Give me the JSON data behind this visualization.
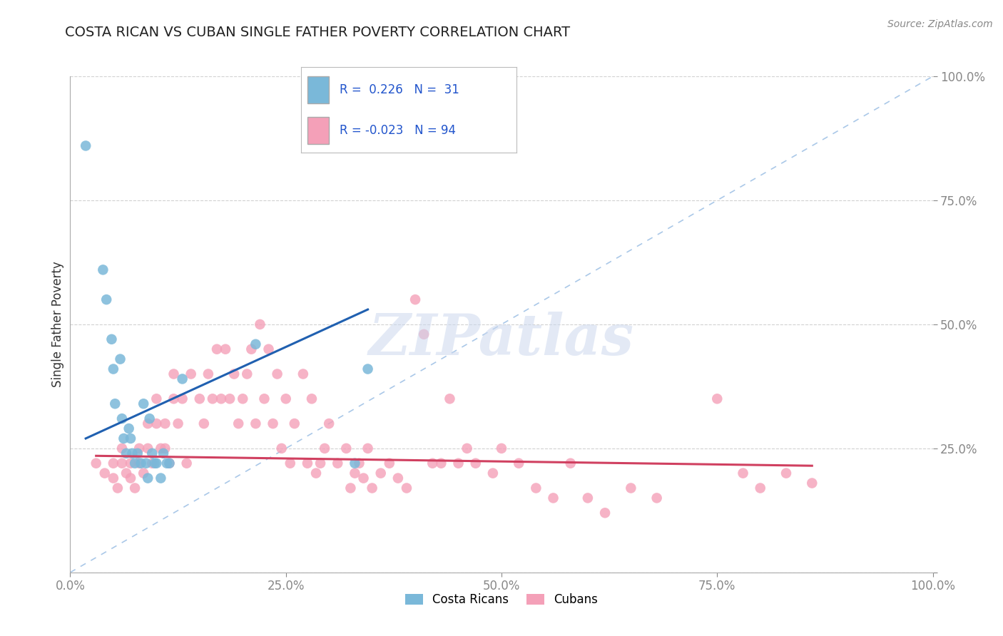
{
  "title": "COSTA RICAN VS CUBAN SINGLE FATHER POVERTY CORRELATION CHART",
  "source": "Source: ZipAtlas.com",
  "ylabel": "Single Father Poverty",
  "xlim": [
    0,
    1
  ],
  "ylim": [
    0,
    1
  ],
  "xticks": [
    0,
    0.25,
    0.5,
    0.75,
    1.0
  ],
  "yticks": [
    0,
    0.25,
    0.5,
    0.75,
    1.0
  ],
  "xticklabels": [
    "0.0%",
    "25.0%",
    "50.0%",
    "75.0%",
    "100.0%"
  ],
  "yticklabels": [
    "",
    "25.0%",
    "50.0%",
    "75.0%",
    "100.0%"
  ],
  "costa_rican_color": "#7ab8d9",
  "cuban_color": "#f4a0b8",
  "blue_line_color": "#2060b0",
  "pink_line_color": "#d04060",
  "diagonal_color": "#aac8e8",
  "watermark_text": "ZIPatlas",
  "background_color": "#ffffff",
  "grid_color": "#cccccc",
  "costa_ricans_x": [
    0.018,
    0.038,
    0.042,
    0.048,
    0.05,
    0.052,
    0.058,
    0.06,
    0.062,
    0.065,
    0.068,
    0.07,
    0.072,
    0.075,
    0.078,
    0.082,
    0.085,
    0.088,
    0.09,
    0.092,
    0.095,
    0.098,
    0.1,
    0.105,
    0.108,
    0.112,
    0.115,
    0.13,
    0.215,
    0.33,
    0.345
  ],
  "costa_ricans_y": [
    0.86,
    0.61,
    0.55,
    0.47,
    0.41,
    0.34,
    0.43,
    0.31,
    0.27,
    0.24,
    0.29,
    0.27,
    0.24,
    0.22,
    0.24,
    0.22,
    0.34,
    0.22,
    0.19,
    0.31,
    0.24,
    0.22,
    0.22,
    0.19,
    0.24,
    0.22,
    0.22,
    0.39,
    0.46,
    0.22,
    0.41
  ],
  "cubans_x": [
    0.03,
    0.04,
    0.05,
    0.05,
    0.055,
    0.06,
    0.06,
    0.065,
    0.07,
    0.07,
    0.075,
    0.08,
    0.08,
    0.085,
    0.09,
    0.09,
    0.095,
    0.1,
    0.1,
    0.105,
    0.11,
    0.11,
    0.115,
    0.12,
    0.12,
    0.125,
    0.13,
    0.135,
    0.14,
    0.15,
    0.155,
    0.16,
    0.165,
    0.17,
    0.175,
    0.18,
    0.185,
    0.19,
    0.195,
    0.2,
    0.205,
    0.21,
    0.215,
    0.22,
    0.225,
    0.23,
    0.235,
    0.24,
    0.245,
    0.25,
    0.255,
    0.26,
    0.27,
    0.275,
    0.28,
    0.285,
    0.29,
    0.295,
    0.3,
    0.31,
    0.32,
    0.325,
    0.33,
    0.335,
    0.34,
    0.345,
    0.35,
    0.36,
    0.37,
    0.38,
    0.39,
    0.4,
    0.41,
    0.42,
    0.43,
    0.44,
    0.45,
    0.46,
    0.47,
    0.49,
    0.5,
    0.52,
    0.54,
    0.56,
    0.58,
    0.6,
    0.62,
    0.65,
    0.68,
    0.75,
    0.78,
    0.8,
    0.83,
    0.86
  ],
  "cubans_y": [
    0.22,
    0.2,
    0.22,
    0.19,
    0.17,
    0.25,
    0.22,
    0.2,
    0.22,
    0.19,
    0.17,
    0.25,
    0.22,
    0.2,
    0.3,
    0.25,
    0.22,
    0.35,
    0.3,
    0.25,
    0.3,
    0.25,
    0.22,
    0.4,
    0.35,
    0.3,
    0.35,
    0.22,
    0.4,
    0.35,
    0.3,
    0.4,
    0.35,
    0.45,
    0.35,
    0.45,
    0.35,
    0.4,
    0.3,
    0.35,
    0.4,
    0.45,
    0.3,
    0.5,
    0.35,
    0.45,
    0.3,
    0.4,
    0.25,
    0.35,
    0.22,
    0.3,
    0.4,
    0.22,
    0.35,
    0.2,
    0.22,
    0.25,
    0.3,
    0.22,
    0.25,
    0.17,
    0.2,
    0.22,
    0.19,
    0.25,
    0.17,
    0.2,
    0.22,
    0.19,
    0.17,
    0.55,
    0.48,
    0.22,
    0.22,
    0.35,
    0.22,
    0.25,
    0.22,
    0.2,
    0.25,
    0.22,
    0.17,
    0.15,
    0.22,
    0.15,
    0.12,
    0.17,
    0.15,
    0.35,
    0.2,
    0.17,
    0.2,
    0.18
  ],
  "blue_line_x": [
    0.018,
    0.345
  ],
  "blue_line_y": [
    0.27,
    0.53
  ],
  "pink_line_x": [
    0.03,
    0.86
  ],
  "pink_line_y": [
    0.235,
    0.215
  ]
}
